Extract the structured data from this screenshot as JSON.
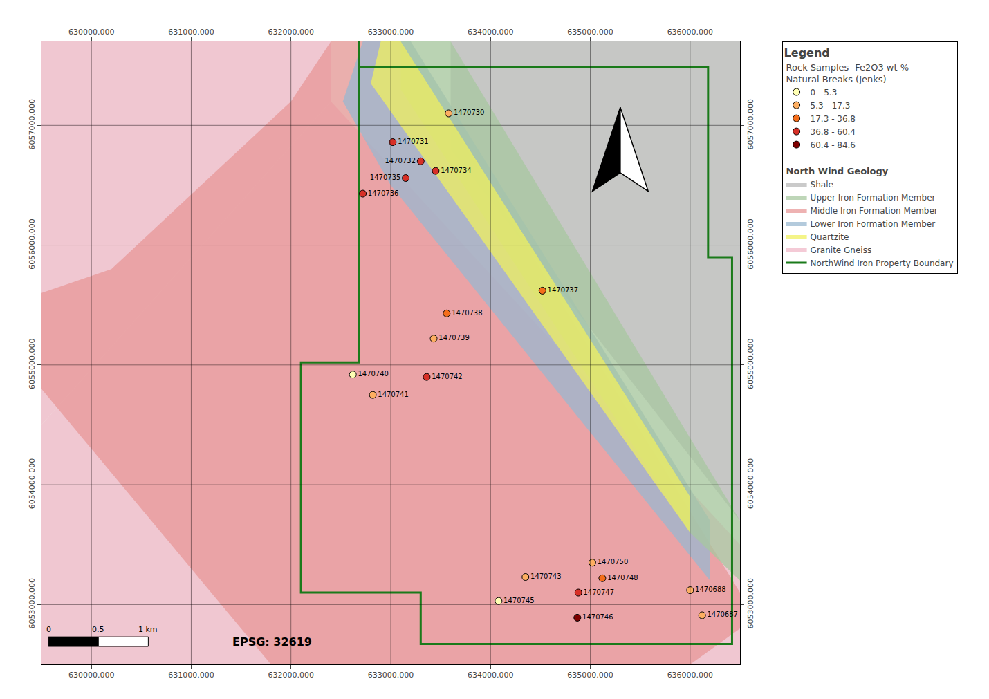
{
  "chart_data": {
    "type": "scatter",
    "xlim": [
      629500,
      636500
    ],
    "ylim": [
      6052500,
      6057700
    ],
    "xticks": [
      {
        "value": 630000,
        "label": "630000.000"
      },
      {
        "value": 631000,
        "label": "631000.000"
      },
      {
        "value": 632000,
        "label": "632000.000"
      },
      {
        "value": 633000,
        "label": "633000.000"
      },
      {
        "value": 634000,
        "label": "634000.000"
      },
      {
        "value": 635000,
        "label": "635000.000"
      },
      {
        "value": 636000,
        "label": "636000.000"
      }
    ],
    "yticks": [
      {
        "value": 6053000,
        "label": "6053000.000"
      },
      {
        "value": 6054000,
        "label": "6054000.000"
      },
      {
        "value": 6055000,
        "label": "6055000.000"
      },
      {
        "value": 6056000,
        "label": "6056000.000"
      },
      {
        "value": 6057000,
        "label": "6057000.000"
      }
    ],
    "grid": true,
    "legend": "right",
    "background_color": "#f0f4ec",
    "legend_title": "Legend",
    "series_title": "Rock Samples- Fe2O3 wt %\nNatural Breaks (Jenks)",
    "series": [
      {
        "name": "0 - 5.3",
        "color": "#ffffb3",
        "labels": [
          "1470740",
          "1470745"
        ],
        "x": [
          632620,
          634080
        ],
        "y": [
          6054920,
          6053030
        ]
      },
      {
        "name": "5.3 - 17.3",
        "color": "#fdae61",
        "labels": [
          "1470730",
          "1470739",
          "1470741",
          "1470743",
          "1470750",
          "1470687",
          "1470688"
        ],
        "x": [
          633580,
          633430,
          632820,
          634350,
          635020,
          636120,
          636000
        ],
        "y": [
          6057100,
          6055220,
          6054750,
          6053230,
          6053350,
          6052910,
          6053120
        ]
      },
      {
        "name": "17.3 - 36.8",
        "color": "#f46d1a",
        "labels": [
          "1470737",
          "1470738",
          "1470748"
        ],
        "x": [
          634520,
          633560,
          635120
        ],
        "y": [
          6055620,
          6055430,
          6053220
        ]
      },
      {
        "name": "36.8 - 60.4",
        "color": "#d73027",
        "labels": [
          "1470731",
          "1470732",
          "1470734",
          "1470735",
          "1470736",
          "1470742",
          "1470747"
        ],
        "x": [
          633020,
          633300,
          633450,
          633150,
          632720,
          633360,
          634880
        ],
        "y": [
          6056860,
          6056700,
          6056620,
          6056560,
          6056430,
          6054900,
          6053100
        ]
      },
      {
        "name": "60.4 - 84.6",
        "color": "#7f0000",
        "labels": [
          "1470746"
        ],
        "x": [
          634870
        ],
        "y": [
          6052890
        ]
      }
    ],
    "areas_title": "North Wind Geology",
    "areas": [
      {
        "name": "Shale",
        "color": "#b8b8b8",
        "polygons": [
          {
            "x": [
              633600,
              636500,
              636500,
              633600,
              633600
            ],
            "y": [
              6057700,
              6057700,
              6053700,
              6056800,
              6057700
            ]
          }
        ]
      },
      {
        "name": "Upper Iron Formation Member",
        "color": "#a8c8a0",
        "polygons": [
          {
            "x": [
              633100,
              633600,
              636500,
              636500,
              636000,
              633100,
              633100
            ],
            "y": [
              6057700,
              6057700,
              6053700,
              6053200,
              6053600,
              6057300,
              6057700
            ]
          }
        ]
      },
      {
        "name": "Middle Iron Formation Member",
        "color": "#e89898",
        "polygons": [
          {
            "x": [
              632400,
              633100,
              636500,
              636500,
              636000,
              631800,
              629500,
              629500,
              630200,
              632000,
              632400
            ],
            "y": [
              6057700,
              6057700,
              6053100,
              6052800,
              6052500,
              6052500,
              6054800,
              6055600,
              6055800,
              6057200,
              6057700
            ]
          }
        ]
      },
      {
        "name": "Lower Iron Formation Member",
        "color": "#9ab8d0",
        "polygons": [
          {
            "x": [
              632720,
              633200,
              636200,
              636200,
              633000,
              632520,
              632720
            ],
            "y": [
              6057700,
              6057700,
              6053700,
              6053200,
              6056500,
              6057200,
              6057700
            ]
          }
        ]
      },
      {
        "name": "Quartzite",
        "color": "#f0f060",
        "polygons": [
          {
            "x": [
              632900,
              633100,
              636000,
              636000,
              632800,
              632900
            ],
            "y": [
              6057700,
              6057700,
              6053900,
              6053600,
              6057350,
              6057700
            ]
          }
        ]
      },
      {
        "name": "Granite Gneiss",
        "color": "#f0b8c8",
        "polygons": [
          {
            "x": [
              629500,
              632400,
              632400,
              629500
            ],
            "y": [
              6057700,
              6057700,
              6057200,
              6054500
            ]
          },
          {
            "x": [
              629500,
              632400,
              636500,
              636500,
              629500
            ],
            "y": [
              6054500,
              6057200,
              6053500,
              6052500,
              6052500
            ]
          }
        ]
      }
    ],
    "boundary": {
      "name": "NorthWind Iron Property Boundary",
      "color": "#1a7a1a",
      "x": [
        632680,
        632680,
        633000,
        633000,
        636180,
        636180,
        636420,
        636420,
        633300,
        633300,
        632100,
        632100,
        632680,
        632680
      ],
      "y": [
        6057700,
        6057490,
        6057490,
        6057490,
        6057490,
        6055900,
        6055900,
        6052670,
        6052670,
        6053100,
        6053100,
        6055020,
        6055020,
        6057700
      ]
    },
    "scale_bar": {
      "x": 629570,
      "y": 6052650,
      "ticks": [
        {
          "value": 0,
          "label": "0"
        },
        {
          "value": 500,
          "label": "0.5"
        },
        {
          "value": 1000,
          "label": "1 km"
        }
      ]
    },
    "annotations": [
      {
        "text": "EPSG: 32619",
        "x": 631400,
        "y": 6052620
      }
    ],
    "north_arrow": {
      "x": 635300,
      "y": 6056450,
      "height": 700,
      "width": 280
    }
  }
}
